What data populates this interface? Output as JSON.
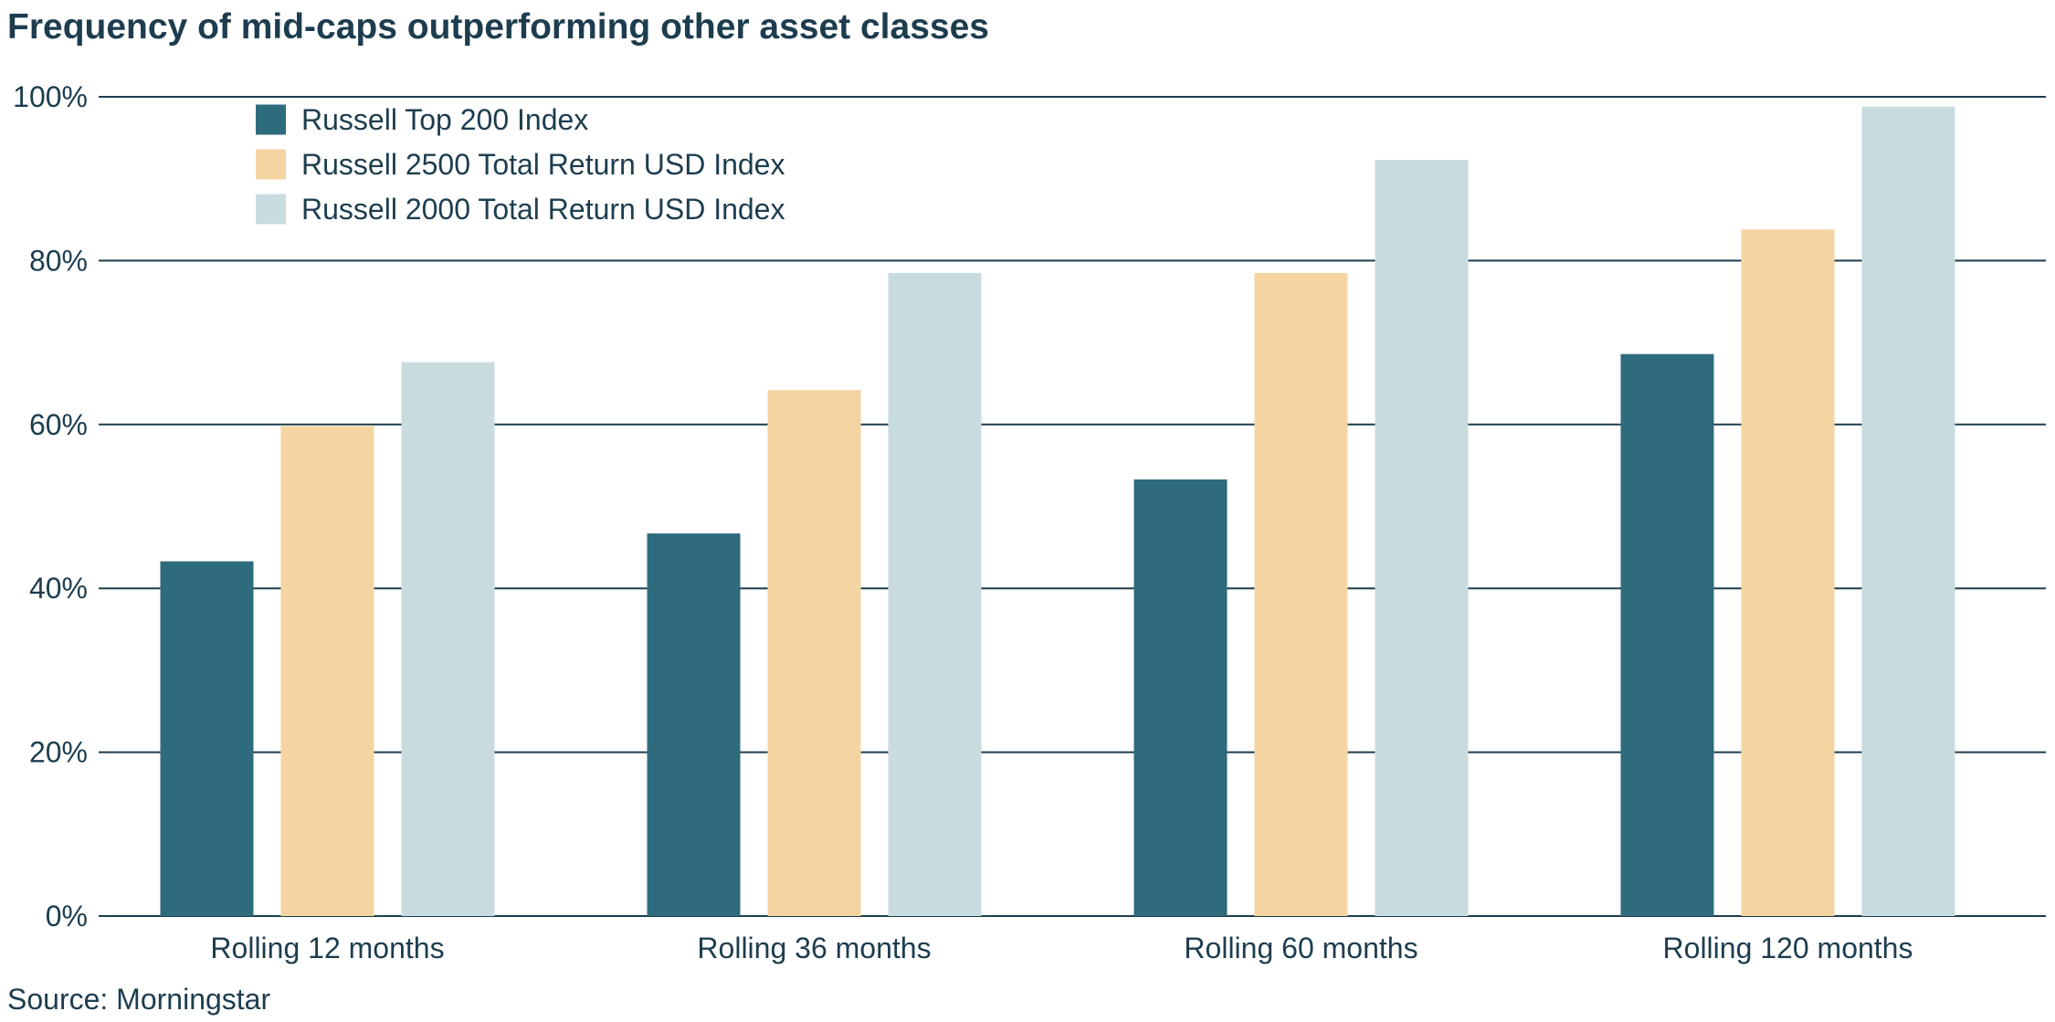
{
  "chart_data": {
    "type": "bar",
    "title": "Frequency of mid-caps outperforming other asset classes",
    "categories": [
      "Rolling 12 months",
      "Rolling 36 months",
      "Rolling 60 months",
      "Rolling 120 months"
    ],
    "series": [
      {
        "name": "Russell Top 200 Index",
        "color": "#2e6b7d",
        "values": [
          43.3,
          46.7,
          53.3,
          68.6
        ]
      },
      {
        "name": "Russell 2500 Total Return USD Index",
        "color": "#f4d5a2",
        "values": [
          59.8,
          64.2,
          78.5,
          83.8
        ]
      },
      {
        "name": "Russell 2000 Total Return USD Index",
        "color": "#c8dce0",
        "values": [
          67.6,
          78.5,
          92.3,
          98.8
        ]
      }
    ],
    "ylim": [
      0,
      100
    ],
    "yticks": [
      0,
      20,
      40,
      60,
      80,
      100
    ],
    "ytick_format": "{v}%",
    "xlabel": "",
    "ylabel": "",
    "grid": true,
    "legend_position": "top-left",
    "source": "Source: Morningstar"
  }
}
